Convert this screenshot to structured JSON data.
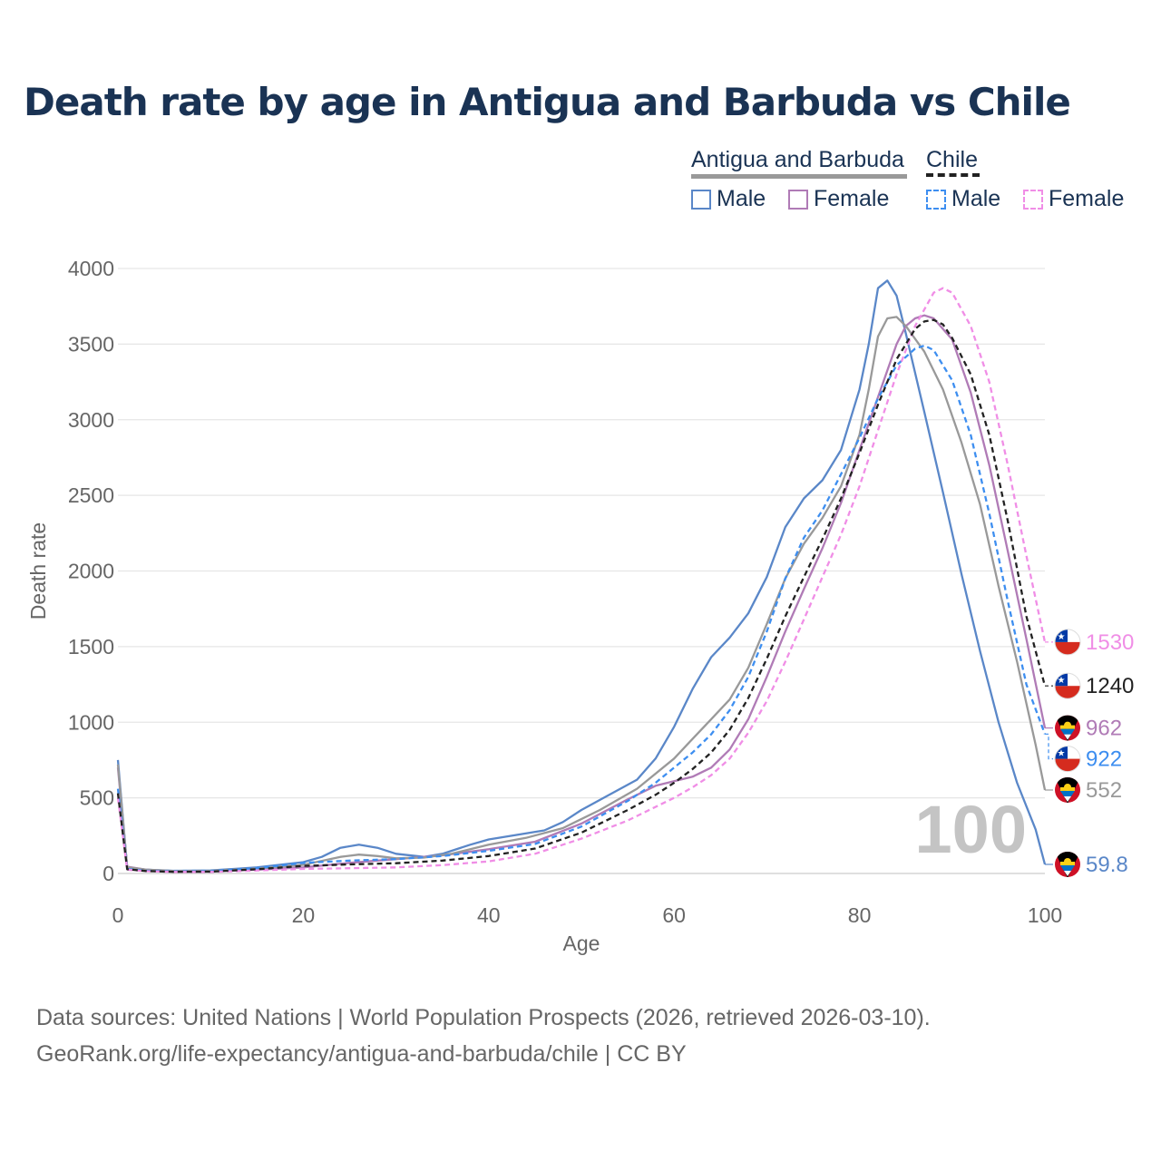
{
  "title": "Death rate by age in Antigua and Barbuda vs Chile",
  "legend": {
    "groups": [
      {
        "name": "Antigua and Barbuda",
        "color": "#999999",
        "dash": "solid",
        "items": [
          {
            "label": "Male",
            "color": "#5a87c8"
          },
          {
            "label": "Female",
            "color": "#b07bb6"
          }
        ]
      },
      {
        "name": "Chile",
        "color": "#222222",
        "dash": "dashed",
        "items": [
          {
            "label": "Male",
            "color": "#3d8ef0"
          },
          {
            "label": "Female",
            "color": "#f08ee6"
          }
        ]
      }
    ]
  },
  "year_watermark": "100",
  "source_line1": "Data sources: United Nations | World Population Prospects (2026, retrieved 2026-03-10).",
  "source_line2": "GeoRank.org/life-expectancy/antigua-and-barbuda/chile | CC BY",
  "chart_data": {
    "type": "line",
    "xlabel": "Age",
    "ylabel": "Death rate",
    "xlim": [
      0,
      100
    ],
    "ylim": [
      0,
      4000
    ],
    "xticks": [
      0,
      20,
      40,
      60,
      80,
      100
    ],
    "yticks": [
      0,
      500,
      1000,
      1500,
      2000,
      2500,
      3000,
      3500,
      4000
    ],
    "grid": true,
    "series": [
      {
        "name": "Antigua and Barbuda Male",
        "country": "Antigua and Barbuda",
        "sex": "Male",
        "color": "#5a87c8",
        "dash": "solid",
        "end_label": "59.8",
        "flag": "antigua",
        "points": [
          [
            0,
            750
          ],
          [
            1,
            40
          ],
          [
            3,
            25
          ],
          [
            6,
            18
          ],
          [
            10,
            20
          ],
          [
            15,
            40
          ],
          [
            20,
            75
          ],
          [
            22,
            110
          ],
          [
            24,
            170
          ],
          [
            26,
            190
          ],
          [
            28,
            170
          ],
          [
            30,
            130
          ],
          [
            33,
            110
          ],
          [
            35,
            130
          ],
          [
            38,
            190
          ],
          [
            40,
            225
          ],
          [
            43,
            255
          ],
          [
            46,
            285
          ],
          [
            48,
            340
          ],
          [
            50,
            420
          ],
          [
            53,
            520
          ],
          [
            56,
            620
          ],
          [
            58,
            760
          ],
          [
            60,
            970
          ],
          [
            62,
            1220
          ],
          [
            64,
            1430
          ],
          [
            66,
            1560
          ],
          [
            68,
            1720
          ],
          [
            70,
            1960
          ],
          [
            72,
            2290
          ],
          [
            74,
            2480
          ],
          [
            76,
            2600
          ],
          [
            78,
            2800
          ],
          [
            80,
            3200
          ],
          [
            81,
            3500
          ],
          [
            82,
            3870
          ],
          [
            83,
            3920
          ],
          [
            84,
            3820
          ],
          [
            85,
            3570
          ],
          [
            87,
            3050
          ],
          [
            89,
            2520
          ],
          [
            91,
            1980
          ],
          [
            93,
            1470
          ],
          [
            95,
            1000
          ],
          [
            97,
            600
          ],
          [
            99,
            290
          ],
          [
            100,
            60
          ]
        ]
      },
      {
        "name": "Antigua and Barbuda Female",
        "country": "Antigua and Barbuda",
        "sex": "Female",
        "color": "#b07bb6",
        "dash": "solid",
        "end_label": "962",
        "flag": "antigua",
        "points": [
          [
            0,
            700
          ],
          [
            1,
            45
          ],
          [
            3,
            25
          ],
          [
            6,
            15
          ],
          [
            10,
            15
          ],
          [
            15,
            25
          ],
          [
            20,
            40
          ],
          [
            25,
            70
          ],
          [
            30,
            95
          ],
          [
            35,
            120
          ],
          [
            40,
            160
          ],
          [
            45,
            210
          ],
          [
            50,
            330
          ],
          [
            55,
            490
          ],
          [
            58,
            580
          ],
          [
            60,
            610
          ],
          [
            62,
            640
          ],
          [
            64,
            700
          ],
          [
            66,
            820
          ],
          [
            68,
            1020
          ],
          [
            70,
            1300
          ],
          [
            72,
            1600
          ],
          [
            74,
            1880
          ],
          [
            76,
            2150
          ],
          [
            78,
            2450
          ],
          [
            80,
            2800
          ],
          [
            82,
            3150
          ],
          [
            84,
            3500
          ],
          [
            85,
            3620
          ],
          [
            86,
            3670
          ],
          [
            87,
            3690
          ],
          [
            88,
            3670
          ],
          [
            90,
            3530
          ],
          [
            92,
            3180
          ],
          [
            94,
            2700
          ],
          [
            96,
            2130
          ],
          [
            98,
            1550
          ],
          [
            100,
            962
          ]
        ]
      },
      {
        "name": "Antigua and Barbuda Total",
        "country": "Antigua and Barbuda",
        "sex": "Total",
        "color": "#999999",
        "dash": "solid",
        "end_label": "552",
        "flag": "antigua",
        "points": [
          [
            0,
            720
          ],
          [
            1,
            42
          ],
          [
            3,
            25
          ],
          [
            6,
            16
          ],
          [
            10,
            17
          ],
          [
            15,
            32
          ],
          [
            20,
            57
          ],
          [
            24,
            110
          ],
          [
            26,
            125
          ],
          [
            28,
            115
          ],
          [
            30,
            100
          ],
          [
            33,
            105
          ],
          [
            36,
            130
          ],
          [
            40,
            190
          ],
          [
            44,
            235
          ],
          [
            48,
            300
          ],
          [
            52,
            420
          ],
          [
            56,
            560
          ],
          [
            60,
            760
          ],
          [
            62,
            890
          ],
          [
            64,
            1020
          ],
          [
            66,
            1150
          ],
          [
            68,
            1360
          ],
          [
            70,
            1650
          ],
          [
            72,
            1950
          ],
          [
            74,
            2180
          ],
          [
            76,
            2350
          ],
          [
            78,
            2560
          ],
          [
            80,
            2900
          ],
          [
            81,
            3200
          ],
          [
            82,
            3550
          ],
          [
            83,
            3670
          ],
          [
            84,
            3680
          ],
          [
            85,
            3620
          ],
          [
            87,
            3450
          ],
          [
            89,
            3200
          ],
          [
            91,
            2850
          ],
          [
            93,
            2440
          ],
          [
            95,
            1900
          ],
          [
            97,
            1400
          ],
          [
            99,
            850
          ],
          [
            100,
            552
          ]
        ]
      },
      {
        "name": "Chile Male",
        "country": "Chile",
        "sex": "Male",
        "color": "#3d8ef0",
        "dash": "dashed",
        "end_label": "922",
        "flag": "chile",
        "points": [
          [
            0,
            560
          ],
          [
            1,
            30
          ],
          [
            3,
            18
          ],
          [
            6,
            13
          ],
          [
            10,
            15
          ],
          [
            15,
            35
          ],
          [
            20,
            70
          ],
          [
            25,
            85
          ],
          [
            30,
            95
          ],
          [
            35,
            115
          ],
          [
            40,
            150
          ],
          [
            45,
            195
          ],
          [
            50,
            310
          ],
          [
            55,
            480
          ],
          [
            58,
            600
          ],
          [
            60,
            700
          ],
          [
            62,
            800
          ],
          [
            64,
            920
          ],
          [
            66,
            1080
          ],
          [
            68,
            1300
          ],
          [
            70,
            1600
          ],
          [
            72,
            1950
          ],
          [
            74,
            2220
          ],
          [
            76,
            2400
          ],
          [
            78,
            2640
          ],
          [
            80,
            2880
          ],
          [
            82,
            3140
          ],
          [
            84,
            3360
          ],
          [
            86,
            3470
          ],
          [
            87,
            3490
          ],
          [
            88,
            3460
          ],
          [
            90,
            3260
          ],
          [
            92,
            2900
          ],
          [
            94,
            2380
          ],
          [
            96,
            1800
          ],
          [
            98,
            1250
          ],
          [
            100,
            922
          ]
        ]
      },
      {
        "name": "Chile Female",
        "country": "Chile",
        "sex": "Female",
        "color": "#f08ee6",
        "dash": "dashed",
        "end_label": "1530",
        "flag": "chile",
        "points": [
          [
            0,
            500
          ],
          [
            1,
            25
          ],
          [
            3,
            15
          ],
          [
            6,
            10
          ],
          [
            10,
            10
          ],
          [
            15,
            20
          ],
          [
            20,
            30
          ],
          [
            25,
            35
          ],
          [
            30,
            40
          ],
          [
            35,
            55
          ],
          [
            40,
            80
          ],
          [
            45,
            130
          ],
          [
            50,
            230
          ],
          [
            55,
            350
          ],
          [
            60,
            500
          ],
          [
            62,
            570
          ],
          [
            64,
            650
          ],
          [
            66,
            760
          ],
          [
            68,
            930
          ],
          [
            70,
            1140
          ],
          [
            72,
            1400
          ],
          [
            74,
            1680
          ],
          [
            76,
            1960
          ],
          [
            78,
            2240
          ],
          [
            80,
            2560
          ],
          [
            82,
            2930
          ],
          [
            84,
            3300
          ],
          [
            86,
            3620
          ],
          [
            88,
            3840
          ],
          [
            89,
            3870
          ],
          [
            90,
            3840
          ],
          [
            92,
            3620
          ],
          [
            94,
            3250
          ],
          [
            96,
            2700
          ],
          [
            98,
            2100
          ],
          [
            100,
            1530
          ]
        ]
      },
      {
        "name": "Chile Total",
        "country": "Chile",
        "sex": "Total",
        "color": "#222222",
        "dash": "dashed",
        "end_label": "1240",
        "flag": "chile",
        "points": [
          [
            0,
            530
          ],
          [
            1,
            28
          ],
          [
            3,
            16
          ],
          [
            6,
            11
          ],
          [
            10,
            12
          ],
          [
            15,
            28
          ],
          [
            20,
            50
          ],
          [
            25,
            60
          ],
          [
            30,
            68
          ],
          [
            35,
            85
          ],
          [
            40,
            115
          ],
          [
            45,
            165
          ],
          [
            50,
            270
          ],
          [
            55,
            420
          ],
          [
            58,
            520
          ],
          [
            60,
            600
          ],
          [
            62,
            690
          ],
          [
            64,
            800
          ],
          [
            66,
            950
          ],
          [
            68,
            1160
          ],
          [
            70,
            1420
          ],
          [
            72,
            1700
          ],
          [
            74,
            1960
          ],
          [
            76,
            2210
          ],
          [
            78,
            2480
          ],
          [
            80,
            2780
          ],
          [
            82,
            3100
          ],
          [
            84,
            3400
          ],
          [
            86,
            3600
          ],
          [
            87,
            3650
          ],
          [
            88,
            3660
          ],
          [
            89,
            3630
          ],
          [
            90,
            3540
          ],
          [
            92,
            3300
          ],
          [
            94,
            2900
          ],
          [
            96,
            2330
          ],
          [
            98,
            1700
          ],
          [
            100,
            1240
          ]
        ]
      }
    ]
  }
}
